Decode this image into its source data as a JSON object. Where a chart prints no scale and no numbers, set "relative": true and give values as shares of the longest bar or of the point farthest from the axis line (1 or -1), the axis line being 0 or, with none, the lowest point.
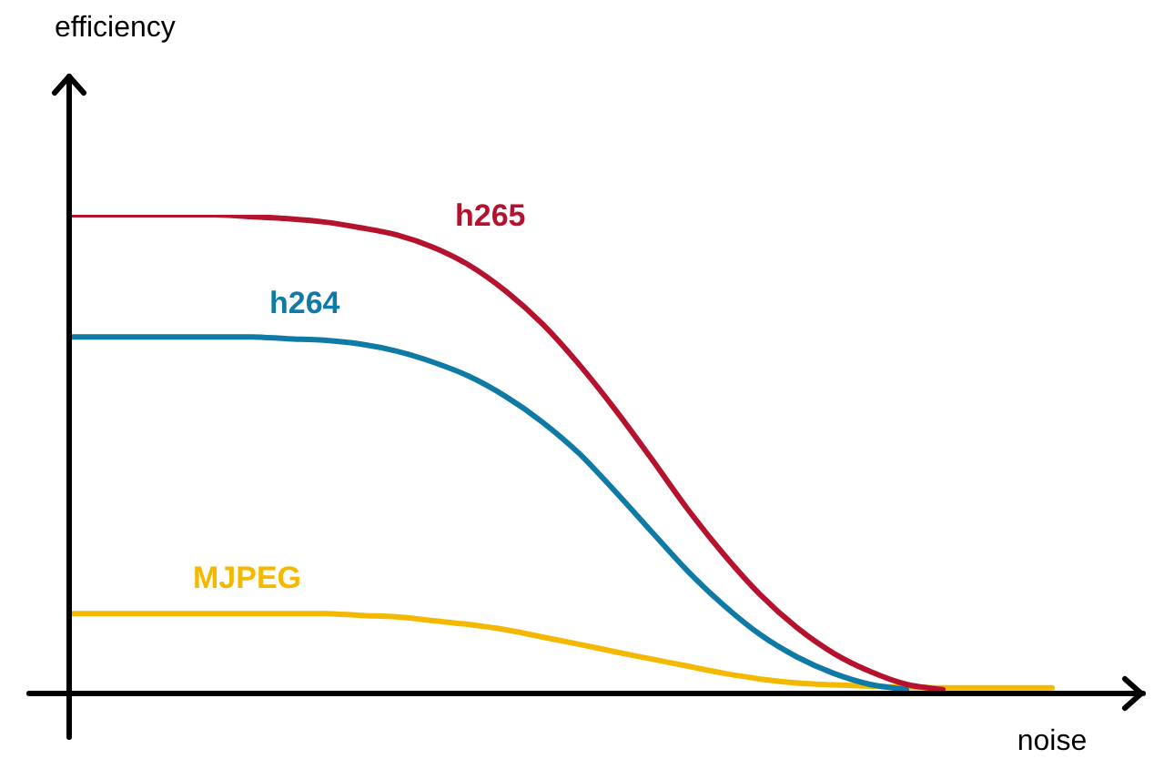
{
  "chart_data": {
    "type": "line",
    "relative": true,
    "xlabel": "noise",
    "annotations": [
      "efficiency"
    ],
    "legend": false,
    "marker": "none",
    "line_style": "solid",
    "categories": [
      null,
      null,
      null,
      null,
      null,
      null,
      null,
      null,
      null,
      null,
      null,
      null,
      null,
      null,
      null,
      null,
      null,
      null,
      null,
      null,
      null,
      null,
      null,
      null,
      null,
      null,
      null,
      null
    ],
    "series": [
      {
        "name": "h265",
        "color": "#b5122e",
        "values": [
          1,
          1,
          1,
          1,
          1,
          0.996,
          0.992,
          0.985,
          0.973,
          0.958,
          0.932,
          0.894,
          0.84,
          0.772,
          0.688,
          0.593,
          0.49,
          0.384,
          0.289,
          0.205,
          0.137,
          0.084,
          0.046,
          0.019,
          0.008,
          null,
          null,
          null
        ]
      },
      {
        "name": "h264",
        "color": "#0f7aa6",
        "values": [
          0.745,
          0.745,
          0.745,
          0.745,
          0.745,
          0.745,
          0.741,
          0.738,
          0.73,
          0.715,
          0.692,
          0.662,
          0.62,
          0.567,
          0.502,
          0.422,
          0.338,
          0.255,
          0.183,
          0.122,
          0.076,
          0.042,
          0.019,
          0.008,
          null,
          null,
          null,
          null
        ]
      },
      {
        "name": "MJPEG",
        "color": "#f5b800",
        "values": [
          0.167,
          0.167,
          0.167,
          0.167,
          0.167,
          0.167,
          0.167,
          0.167,
          0.163,
          0.16,
          0.152,
          0.144,
          0.133,
          0.118,
          0.103,
          0.087,
          0.072,
          0.057,
          0.042,
          0.03,
          0.022,
          0.018,
          0.015,
          0.013,
          0.012,
          0.012,
          0.012,
          0.012
        ]
      }
    ]
  }
}
